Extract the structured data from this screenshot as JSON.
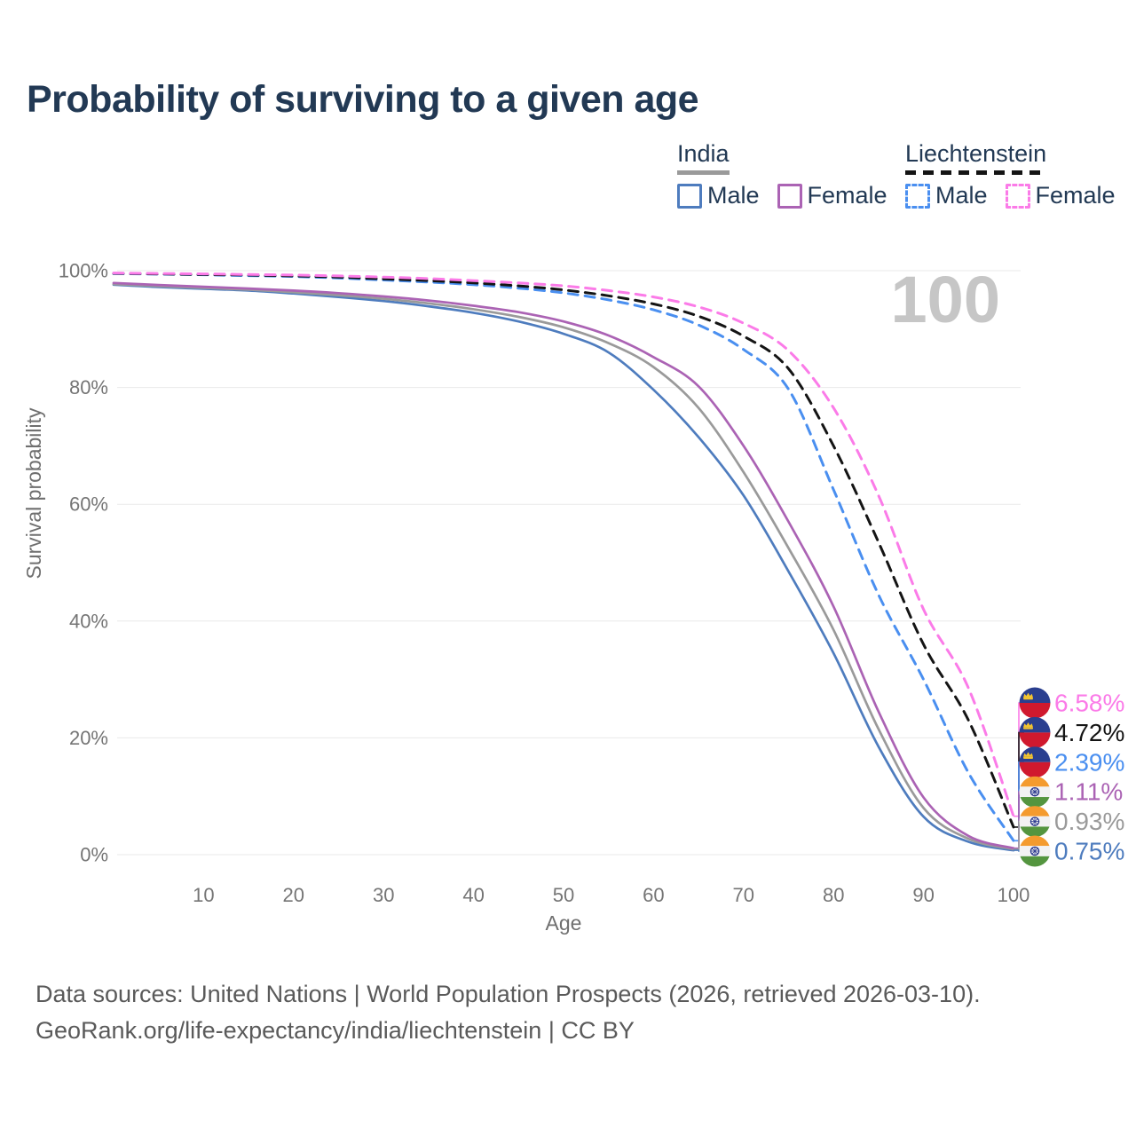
{
  "header": {
    "title": "Probability of surviving to a given age"
  },
  "legend": {
    "groups": [
      {
        "country": "India",
        "line_style": "solid",
        "line_color": "#9a9a9a",
        "items": [
          {
            "label": "Male",
            "style": "solid",
            "color": "#4e7cbe"
          },
          {
            "label": "Female",
            "style": "solid",
            "color": "#ab63b4"
          }
        ]
      },
      {
        "country": "Liechtenstein",
        "line_style": "dashed",
        "line_color": "#141414",
        "items": [
          {
            "label": "Male",
            "style": "dashed",
            "color": "#4a8ff0"
          },
          {
            "label": "Female",
            "style": "dashed",
            "color": "#fb7be8"
          }
        ]
      }
    ]
  },
  "watermark": "100",
  "chart_data": {
    "type": "line",
    "title": "Probability of surviving to a given age",
    "xlabel": "Age",
    "ylabel": "Survival probability",
    "xlim": [
      0,
      100
    ],
    "ylim": [
      0,
      100
    ],
    "x_ticks": [
      10,
      20,
      30,
      40,
      50,
      60,
      70,
      80,
      90,
      100
    ],
    "y_ticks": [
      0,
      20,
      40,
      60,
      80,
      100
    ],
    "y_tick_labels": [
      "0%",
      "20%",
      "40%",
      "60%",
      "80%",
      "100%"
    ],
    "grid": "horizontal",
    "legend_position": "top-right",
    "x": [
      0,
      5,
      10,
      15,
      20,
      25,
      30,
      35,
      40,
      45,
      50,
      55,
      60,
      65,
      70,
      75,
      80,
      85,
      90,
      95,
      100
    ],
    "series": [
      {
        "name": "India Male",
        "country": "India",
        "sex": "Male",
        "color": "#4e7cbe",
        "dash": "solid",
        "flag": "india",
        "end_value": 0.75,
        "end_label": "0.75%",
        "values": [
          97.6,
          97.2,
          96.9,
          96.6,
          96.1,
          95.5,
          94.8,
          93.9,
          92.8,
          91.3,
          89.2,
          86.0,
          79.6,
          71.5,
          61.5,
          48.5,
          34.5,
          18.5,
          6.5,
          2.2,
          0.75
        ]
      },
      {
        "name": "India (both sexes)",
        "country": "India",
        "sex": "All",
        "color": "#9a9a9a",
        "dash": "solid",
        "flag": "india",
        "end_value": 0.93,
        "end_label": "0.93%",
        "values": [
          97.7,
          97.35,
          97.05,
          96.75,
          96.3,
          95.8,
          95.2,
          94.4,
          93.4,
          92.1,
          90.3,
          87.6,
          83.5,
          76.5,
          65.5,
          52.5,
          38.5,
          21.5,
          8.0,
          2.7,
          0.93
        ]
      },
      {
        "name": "India Female",
        "country": "India",
        "sex": "Female",
        "color": "#ab63b4",
        "dash": "solid",
        "flag": "india",
        "end_value": 1.11,
        "end_label": "1.11%",
        "values": [
          97.9,
          97.55,
          97.25,
          96.95,
          96.6,
          96.15,
          95.6,
          94.9,
          94.0,
          92.9,
          91.3,
          88.9,
          85.2,
          80.2,
          70.0,
          57.0,
          42.5,
          24.5,
          9.8,
          3.2,
          1.11
        ]
      },
      {
        "name": "Liechtenstein Male",
        "country": "Liechtenstein",
        "sex": "Male",
        "color": "#4a8ff0",
        "dash": "dashed",
        "flag": "liechtenstein",
        "end_value": 2.39,
        "end_label": "2.39%",
        "values": [
          99.5,
          99.4,
          99.3,
          99.15,
          99.0,
          98.75,
          98.4,
          98.05,
          97.6,
          97.0,
          96.2,
          95.0,
          93.3,
          90.7,
          86.5,
          79.7,
          62.5,
          44.5,
          30.0,
          14.0,
          2.39
        ]
      },
      {
        "name": "Liechtenstein (both sexes)",
        "country": "Liechtenstein",
        "sex": "All",
        "color": "#141414",
        "dash": "dashed",
        "flag": "liechtenstein",
        "end_value": 4.72,
        "end_label": "4.72%",
        "values": [
          99.55,
          99.45,
          99.35,
          99.25,
          99.1,
          98.9,
          98.6,
          98.3,
          97.9,
          97.4,
          96.7,
          95.7,
          94.3,
          92.2,
          88.8,
          83.2,
          70.0,
          53.5,
          36.0,
          23.0,
          4.72
        ]
      },
      {
        "name": "Liechtenstein Female",
        "country": "Liechtenstein",
        "sex": "Female",
        "color": "#fb7be8",
        "dash": "dashed",
        "flag": "liechtenstein",
        "end_value": 6.58,
        "end_label": "6.58%",
        "values": [
          99.6,
          99.52,
          99.45,
          99.35,
          99.25,
          99.1,
          98.9,
          98.65,
          98.3,
          97.9,
          97.4,
          96.6,
          95.5,
          93.8,
          91.0,
          86.3,
          76.5,
          61.5,
          42.0,
          28.5,
          6.58
        ]
      }
    ]
  },
  "footer": {
    "line1": "Data sources: United Nations | World Population Prospects (2026, retrieved 2026-03-10).",
    "line2": "GeoRank.org/life-expectancy/india/liechtenstein | CC BY"
  }
}
